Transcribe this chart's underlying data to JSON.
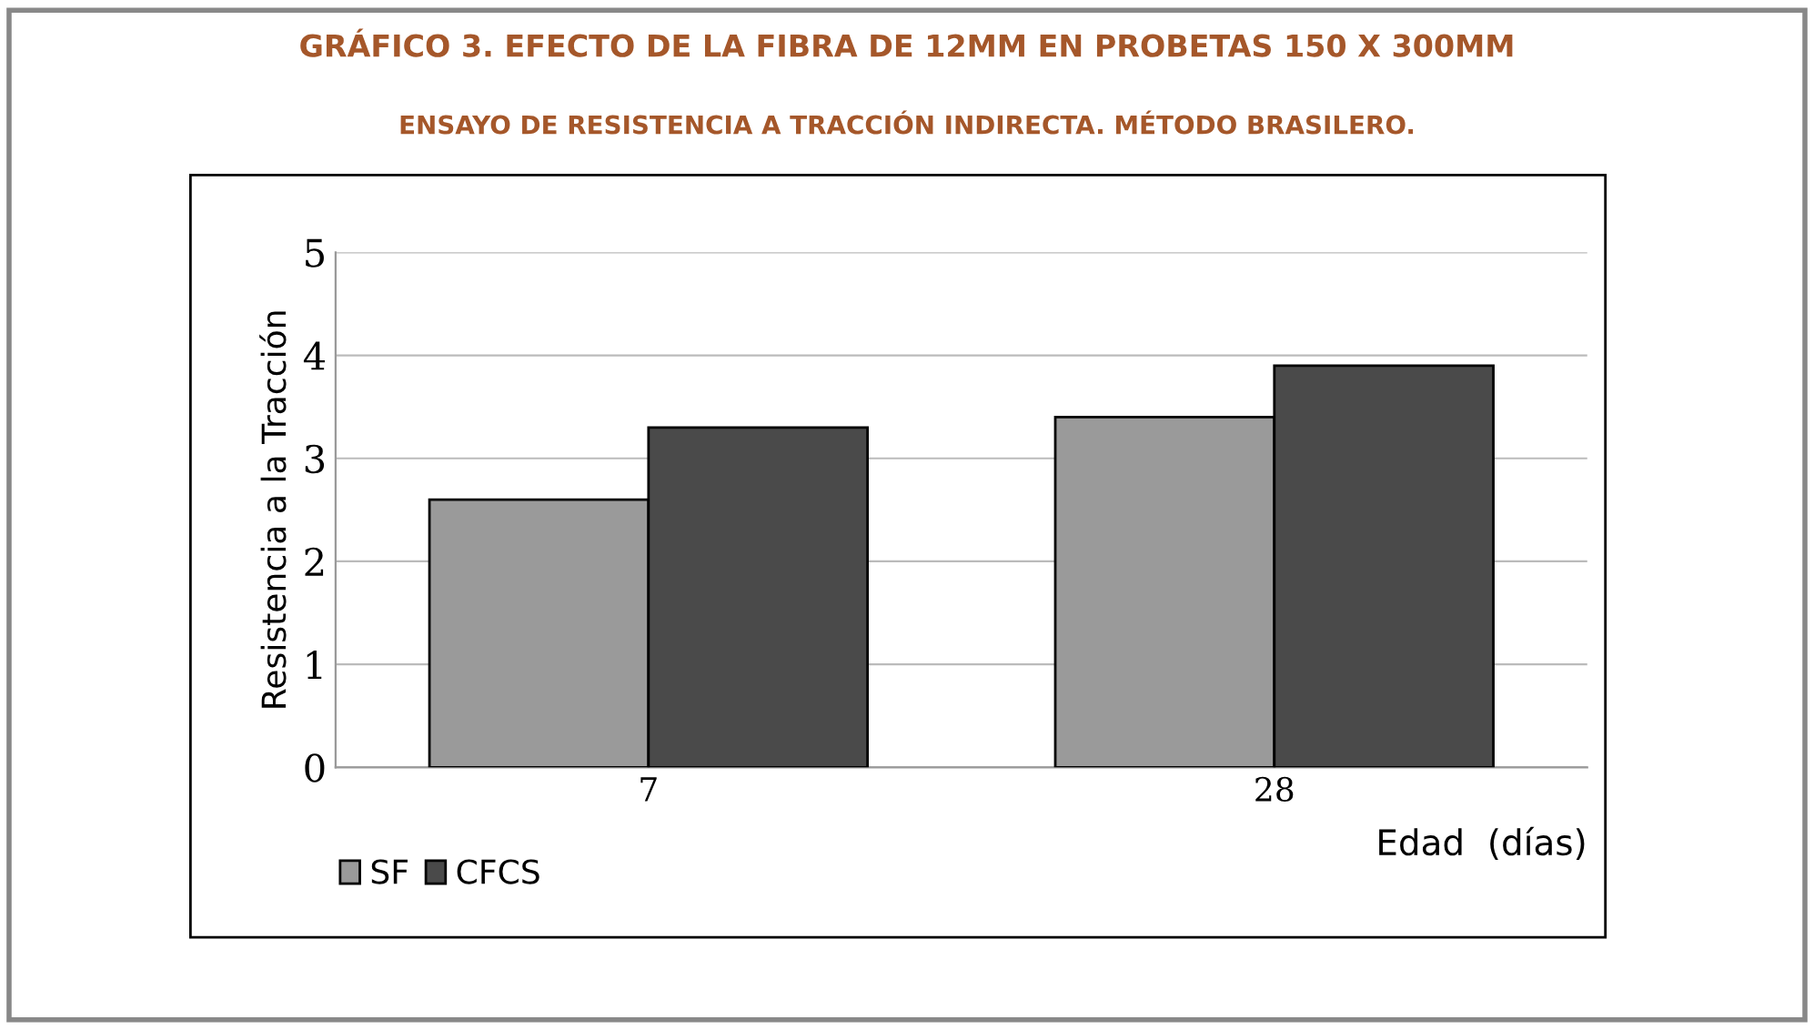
{
  "chart_data": {
    "type": "bar",
    "title": "GRÁFICO 3. EFECTO DE LA FIBRA DE 12MM EN PROBETAS 150 X 300MM",
    "subtitle": "ENSAYO DE RESISTENCIA A TRACCIÓN INDIRECTA. MÉTODO BRASILERO.",
    "xlabel": "Edad  (días)",
    "ylabel": "Resistencia a la Tracción",
    "categories": [
      "7",
      "28"
    ],
    "series": [
      {
        "name": "SF",
        "color": "#9a9a9a",
        "values": [
          2.6,
          3.4
        ]
      },
      {
        "name": "CFCS",
        "color": "#4a4a4a",
        "values": [
          3.3,
          3.9
        ]
      }
    ],
    "ylim": [
      0,
      5
    ],
    "yticks": [
      0,
      1,
      2,
      3,
      4,
      5
    ],
    "grid": "y",
    "legend": "bottom left"
  }
}
